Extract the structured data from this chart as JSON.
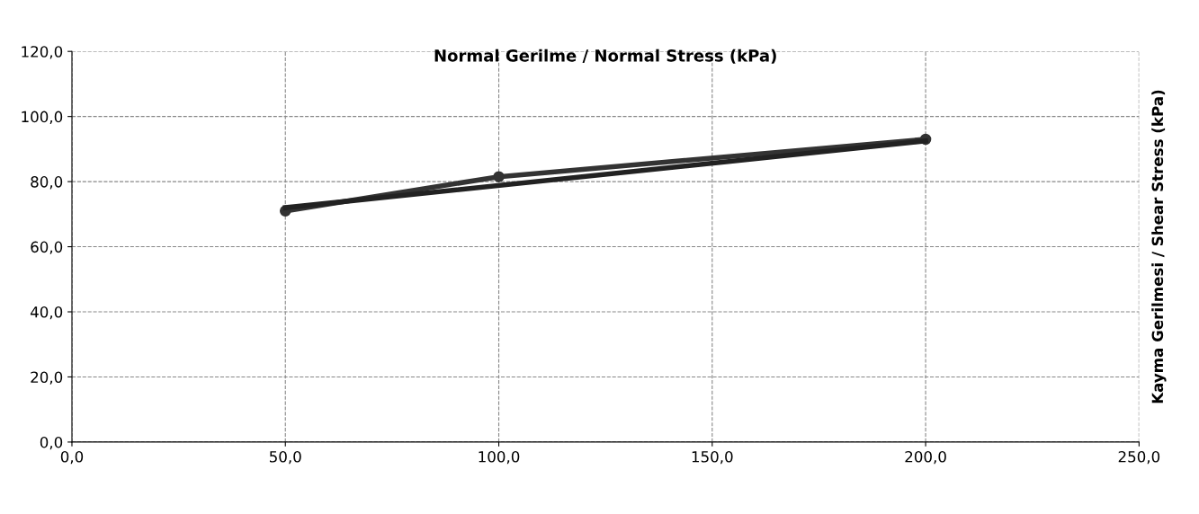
{
  "chart_data": {
    "type": "line",
    "title": "Normal Gerilme / Normal Stress (kPa)",
    "ylabel": "Kayma Gerilmesi / Shear Stress (kPa)",
    "xlim": [
      0,
      250
    ],
    "ylim": [
      0,
      120
    ],
    "xticks": [
      {
        "value": 0,
        "label": "0,0"
      },
      {
        "value": 50,
        "label": "50,0"
      },
      {
        "value": 100,
        "label": "100,0"
      },
      {
        "value": 150,
        "label": "150,0"
      },
      {
        "value": 200,
        "label": "200,0"
      },
      {
        "value": 250,
        "label": "250,0"
      }
    ],
    "yticks": [
      {
        "value": 0,
        "label": "0,0"
      },
      {
        "value": 20,
        "label": "20,0"
      },
      {
        "value": 40,
        "label": "40,0"
      },
      {
        "value": 60,
        "label": "60,0"
      },
      {
        "value": 80,
        "label": "80,0"
      },
      {
        "value": 100,
        "label": "100,0"
      },
      {
        "value": 120,
        "label": "120,0"
      }
    ],
    "grid": true,
    "series": [
      {
        "x": [
          50,
          100,
          200
        ],
        "values": [
          71,
          81.5,
          93
        ],
        "color": "#333333",
        "marker": "circle"
      },
      {
        "x": [
          50,
          200
        ],
        "values": [
          72,
          92.5
        ],
        "color": "#222222",
        "marker": "none"
      }
    ]
  }
}
